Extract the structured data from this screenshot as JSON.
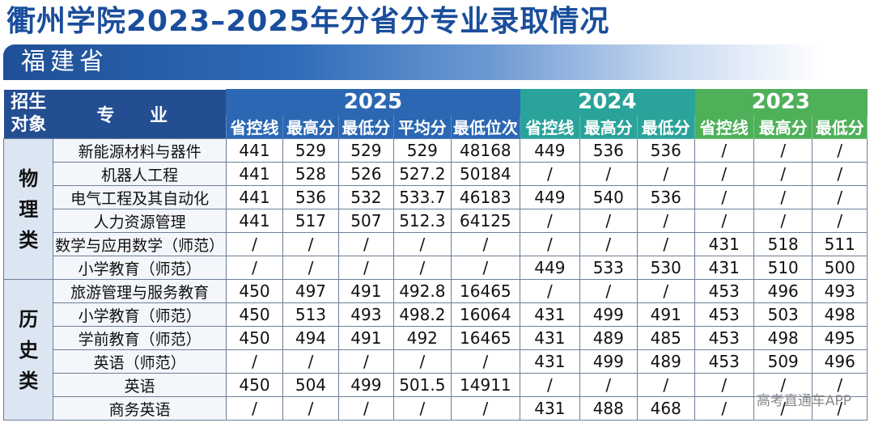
{
  "title": "衢州学院2023–2025年分省分专业录取情况",
  "province": "福建省",
  "header": {
    "category": [
      "招生",
      "对象"
    ],
    "major": "专 业",
    "years": [
      {
        "year": "2025",
        "cols": [
          "省控线",
          "最高分",
          "最低分",
          "平均分",
          "最低位次"
        ]
      },
      {
        "year": "2024",
        "cols": [
          "省控线",
          "最高分",
          "最低分"
        ]
      },
      {
        "year": "2023",
        "cols": [
          "省控线",
          "最高分",
          "最低分"
        ]
      }
    ]
  },
  "groups": [
    {
      "category": [
        "物",
        "理",
        "类"
      ],
      "rows": [
        {
          "major": "新能源材料与器件",
          "cells": [
            "441",
            "529",
            "529",
            "529",
            "48168",
            "449",
            "536",
            "536",
            "/",
            "/",
            "/"
          ]
        },
        {
          "major": "机器人工程",
          "cells": [
            "441",
            "528",
            "526",
            "527.2",
            "50184",
            "/",
            "/",
            "/",
            "/",
            "/",
            "/"
          ]
        },
        {
          "major": "电气工程及其自动化",
          "cells": [
            "441",
            "536",
            "532",
            "533.7",
            "46183",
            "449",
            "540",
            "536",
            "/",
            "/",
            "/"
          ]
        },
        {
          "major": "人力资源管理",
          "cells": [
            "441",
            "517",
            "507",
            "512.3",
            "64125",
            "/",
            "/",
            "/",
            "/",
            "/",
            "/"
          ]
        },
        {
          "major": "数学与应用数学（师范）",
          "cells": [
            "/",
            "/",
            "/",
            "/",
            "/",
            "/",
            "/",
            "/",
            "431",
            "518",
            "511"
          ]
        },
        {
          "major": "小学教育（师范）",
          "cells": [
            "/",
            "/",
            "/",
            "/",
            "/",
            "449",
            "533",
            "530",
            "431",
            "510",
            "500"
          ]
        }
      ]
    },
    {
      "category": [
        "历",
        "史",
        "类"
      ],
      "rows": [
        {
          "major": "旅游管理与服务教育",
          "cells": [
            "450",
            "497",
            "491",
            "492.8",
            "16465",
            "/",
            "/",
            "/",
            "453",
            "496",
            "493"
          ]
        },
        {
          "major": "小学教育（师范）",
          "cells": [
            "450",
            "513",
            "493",
            "498.2",
            "16064",
            "431",
            "499",
            "491",
            "453",
            "503",
            "498"
          ]
        },
        {
          "major": "学前教育（师范）",
          "cells": [
            "450",
            "494",
            "491",
            "492",
            "16465",
            "431",
            "489",
            "485",
            "453",
            "498",
            "495"
          ]
        },
        {
          "major": "英语（师范）",
          "cells": [
            "/",
            "/",
            "/",
            "/",
            "/",
            "431",
            "499",
            "489",
            "453",
            "509",
            "496"
          ]
        },
        {
          "major": "英语",
          "cells": [
            "450",
            "504",
            "499",
            "501.5",
            "14911",
            "/",
            "/",
            "/",
            "/",
            "/",
            "/"
          ]
        },
        {
          "major": "商务英语",
          "cells": [
            "/",
            "/",
            "/",
            "/",
            "/",
            "431",
            "488",
            "468",
            "/",
            "/",
            "/"
          ]
        }
      ]
    }
  ],
  "watermark": "高考直通车APP",
  "colors": {
    "title": "#1a4e9c",
    "header_2025": "#2b67b2",
    "header_2024": "#2aa39a",
    "header_2023": "#4fb05a"
  }
}
